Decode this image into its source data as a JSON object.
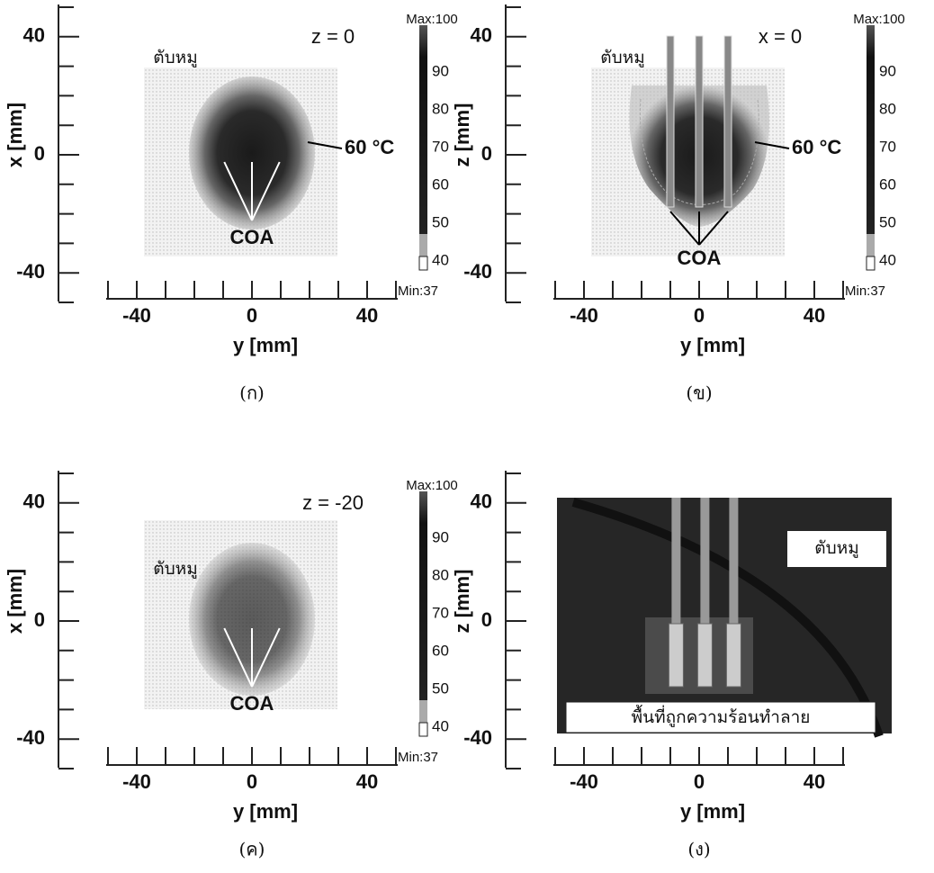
{
  "panels": [
    {
      "caption": "(ก)",
      "title": "z = 0",
      "y_axis_label": "x [mm]",
      "x_axis_label": "y [mm]",
      "yticks": [
        40,
        0,
        -40
      ],
      "xticks": [
        -40,
        0,
        40
      ],
      "sample_label": "ตับหมู",
      "isotherm_label": "60 °C",
      "target_label": "COA",
      "colorbar": {
        "max_label": "Max:100",
        "min_label": "Min:37",
        "ticks": [
          90,
          80,
          70,
          60,
          50,
          40
        ]
      }
    },
    {
      "caption": "(ข)",
      "title": "x = 0",
      "y_axis_label": "z [mm]",
      "x_axis_label": "y [mm]",
      "yticks": [
        40,
        0,
        -40
      ],
      "xticks": [
        -40,
        0,
        40
      ],
      "sample_label": "ตับหมู",
      "isotherm_label": "60 °C",
      "target_label": "COA",
      "colorbar": {
        "max_label": "Max:100",
        "min_label": "Min:37",
        "ticks": [
          90,
          80,
          70,
          60,
          50,
          40
        ]
      }
    },
    {
      "caption": "(ค)",
      "title": "z = -20",
      "y_axis_label": "x [mm]",
      "x_axis_label": "y [mm]",
      "yticks": [
        40,
        0,
        -40
      ],
      "xticks": [
        -40,
        0,
        40
      ],
      "sample_label": "ตับหมู",
      "target_label": "COA",
      "colorbar": {
        "max_label": "Max:100",
        "min_label": "Min:37",
        "ticks": [
          90,
          80,
          70,
          60,
          50,
          40
        ]
      }
    },
    {
      "caption": "(ง)",
      "y_axis_label": "z [mm]",
      "x_axis_label": "y [mm]",
      "yticks": [
        40,
        0,
        -40
      ],
      "xticks": [
        -40,
        0,
        40
      ],
      "sample_label": "ตับหมู",
      "damage_label": "พื้นที่ถูกความร้อนทำลาย"
    }
  ]
}
